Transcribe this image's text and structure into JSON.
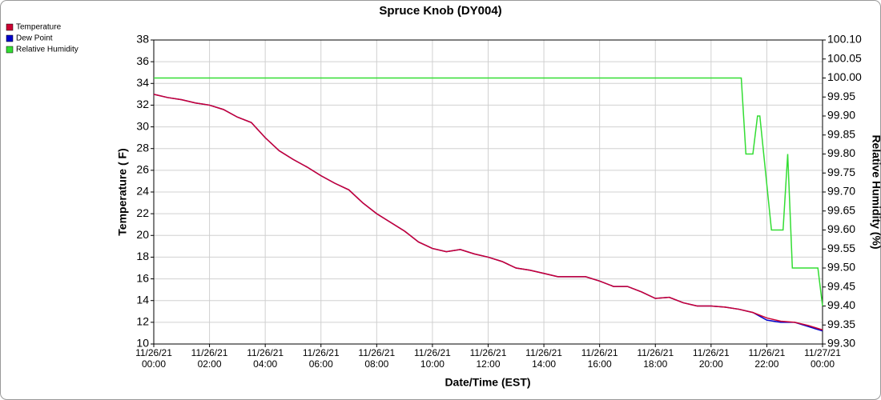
{
  "chart_data": {
    "type": "line",
    "title": "Spruce Knob (DY004)",
    "xlabel": "Date/Time (EST)",
    "ylabel": "Temperature ( F)",
    "y2label": "Relative Humidity (%)",
    "xlim": [
      "2021-11-26T00:00",
      "2021-11-27T00:00"
    ],
    "xticks": [
      {
        "value": "2021-11-26T00:00",
        "label": "11/26/21 00:00"
      },
      {
        "value": "2021-11-26T02:00",
        "label": "11/26/21 02:00"
      },
      {
        "value": "2021-11-26T04:00",
        "label": "11/26/21 04:00"
      },
      {
        "value": "2021-11-26T06:00",
        "label": "11/26/21 06:00"
      },
      {
        "value": "2021-11-26T08:00",
        "label": "11/26/21 08:00"
      },
      {
        "value": "2021-11-26T10:00",
        "label": "11/26/21 10:00"
      },
      {
        "value": "2021-11-26T12:00",
        "label": "11/26/21 12:00"
      },
      {
        "value": "2021-11-26T14:00",
        "label": "11/26/21 14:00"
      },
      {
        "value": "2021-11-26T16:00",
        "label": "11/26/21 16:00"
      },
      {
        "value": "2021-11-26T18:00",
        "label": "11/26/21 18:00"
      },
      {
        "value": "2021-11-26T20:00",
        "label": "11/26/21 20:00"
      },
      {
        "value": "2021-11-26T22:00",
        "label": "11/26/21 22:00"
      },
      {
        "value": "2021-11-27T00:00",
        "label": "11/27/21 00:00"
      }
    ],
    "ylim": [
      10,
      38
    ],
    "yticks": [
      10,
      12,
      14,
      16,
      18,
      20,
      22,
      24,
      26,
      28,
      30,
      32,
      34,
      36,
      38
    ],
    "y2lim": [
      99.3,
      100.1
    ],
    "y2ticks": [
      {
        "value": 99.3,
        "label": "99.30"
      },
      {
        "value": 99.35,
        "label": "99.35"
      },
      {
        "value": 99.4,
        "label": "99.40"
      },
      {
        "value": 99.45,
        "label": "99.45"
      },
      {
        "value": 99.5,
        "label": "99.50"
      },
      {
        "value": 99.55,
        "label": "99.55"
      },
      {
        "value": 99.6,
        "label": "99.60"
      },
      {
        "value": 99.65,
        "label": "99.65"
      },
      {
        "value": 99.7,
        "label": "99.70"
      },
      {
        "value": 99.75,
        "label": "99.75"
      },
      {
        "value": 99.8,
        "label": "99.80"
      },
      {
        "value": 99.85,
        "label": "99.85"
      },
      {
        "value": 99.9,
        "label": "99.90"
      },
      {
        "value": 99.95,
        "label": "99.95"
      },
      {
        "value": 100,
        "label": "100.00"
      },
      {
        "value": 100.05,
        "label": "100.05"
      },
      {
        "value": 100.1,
        "label": "100.10"
      }
    ],
    "grid": true,
    "legend": "top-left",
    "series": [
      {
        "name": "Dew Point",
        "color": "#0000cc",
        "x": [
          "2021-11-26T00:00",
          "2021-11-26T00:30",
          "2021-11-26T01:00",
          "2021-11-26T01:30",
          "2021-11-26T02:00",
          "2021-11-26T02:30",
          "2021-11-26T03:00",
          "2021-11-26T03:30",
          "2021-11-26T04:00",
          "2021-11-26T04:30",
          "2021-11-26T05:00",
          "2021-11-26T05:30",
          "2021-11-26T06:00",
          "2021-11-26T06:30",
          "2021-11-26T07:00",
          "2021-11-26T07:30",
          "2021-11-26T08:00",
          "2021-11-26T08:30",
          "2021-11-26T09:00",
          "2021-11-26T09:30",
          "2021-11-26T10:00",
          "2021-11-26T10:30",
          "2021-11-26T11:00",
          "2021-11-26T11:30",
          "2021-11-26T12:00",
          "2021-11-26T12:30",
          "2021-11-26T13:00",
          "2021-11-26T13:30",
          "2021-11-26T14:00",
          "2021-11-26T14:30",
          "2021-11-26T15:00",
          "2021-11-26T15:30",
          "2021-11-26T16:00",
          "2021-11-26T16:30",
          "2021-11-26T17:00",
          "2021-11-26T17:30",
          "2021-11-26T18:00",
          "2021-11-26T18:30",
          "2021-11-26T19:00",
          "2021-11-26T19:30",
          "2021-11-26T20:00",
          "2021-11-26T20:30",
          "2021-11-26T21:00",
          "2021-11-26T21:30",
          "2021-11-26T22:00",
          "2021-11-26T22:30",
          "2021-11-26T23:00",
          "2021-11-26T23:30",
          "2021-11-27T00:00"
        ],
        "values": [
          33.0,
          32.7,
          32.5,
          32.2,
          32.0,
          31.6,
          30.9,
          30.4,
          29.0,
          27.8,
          27.0,
          26.3,
          25.5,
          24.8,
          24.2,
          23.0,
          22.0,
          21.2,
          20.4,
          19.4,
          18.8,
          18.5,
          18.7,
          18.3,
          18.0,
          17.6,
          17.0,
          16.8,
          16.5,
          16.2,
          16.2,
          16.2,
          15.8,
          15.3,
          15.3,
          14.8,
          14.2,
          14.3,
          13.8,
          13.5,
          13.5,
          13.4,
          13.2,
          12.9,
          12.2,
          12.0,
          12.0,
          11.6,
          11.2
        ]
      },
      {
        "name": "Temperature",
        "color": "#cc0033",
        "x": [
          "2021-11-26T00:00",
          "2021-11-26T00:30",
          "2021-11-26T01:00",
          "2021-11-26T01:30",
          "2021-11-26T02:00",
          "2021-11-26T02:30",
          "2021-11-26T03:00",
          "2021-11-26T03:30",
          "2021-11-26T04:00",
          "2021-11-26T04:30",
          "2021-11-26T05:00",
          "2021-11-26T05:30",
          "2021-11-26T06:00",
          "2021-11-26T06:30",
          "2021-11-26T07:00",
          "2021-11-26T07:30",
          "2021-11-26T08:00",
          "2021-11-26T08:30",
          "2021-11-26T09:00",
          "2021-11-26T09:30",
          "2021-11-26T10:00",
          "2021-11-26T10:30",
          "2021-11-26T11:00",
          "2021-11-26T11:30",
          "2021-11-26T12:00",
          "2021-11-26T12:30",
          "2021-11-26T13:00",
          "2021-11-26T13:30",
          "2021-11-26T14:00",
          "2021-11-26T14:30",
          "2021-11-26T15:00",
          "2021-11-26T15:30",
          "2021-11-26T16:00",
          "2021-11-26T16:30",
          "2021-11-26T17:00",
          "2021-11-26T17:30",
          "2021-11-26T18:00",
          "2021-11-26T18:30",
          "2021-11-26T19:00",
          "2021-11-26T19:30",
          "2021-11-26T20:00",
          "2021-11-26T20:30",
          "2021-11-26T21:00",
          "2021-11-26T21:30",
          "2021-11-26T22:00",
          "2021-11-26T22:30",
          "2021-11-26T23:00",
          "2021-11-26T23:30",
          "2021-11-27T00:00"
        ],
        "values": [
          33.0,
          32.7,
          32.5,
          32.2,
          32.0,
          31.6,
          30.9,
          30.4,
          29.0,
          27.8,
          27.0,
          26.3,
          25.5,
          24.8,
          24.2,
          23.0,
          22.0,
          21.2,
          20.4,
          19.4,
          18.8,
          18.5,
          18.7,
          18.3,
          18.0,
          17.6,
          17.0,
          16.8,
          16.5,
          16.2,
          16.2,
          16.2,
          15.8,
          15.3,
          15.3,
          14.8,
          14.2,
          14.3,
          13.8,
          13.5,
          13.5,
          13.4,
          13.2,
          12.9,
          12.4,
          12.1,
          12.0,
          11.7,
          11.3
        ]
      },
      {
        "name": "Relative Humidity",
        "color": "#33dd33",
        "axis": "y2",
        "x": [
          "2021-11-26T00:00",
          "2021-11-26T21:05",
          "2021-11-26T21:15",
          "2021-11-26T21:30",
          "2021-11-26T21:40",
          "2021-11-26T21:45",
          "2021-11-26T22:10",
          "2021-11-26T22:35",
          "2021-11-26T22:45",
          "2021-11-26T22:55",
          "2021-11-26T23:50",
          "2021-11-27T00:00"
        ],
        "values": [
          100.0,
          100.0,
          99.8,
          99.8,
          99.9,
          99.9,
          99.6,
          99.6,
          99.8,
          99.5,
          99.5,
          99.4
        ]
      }
    ]
  }
}
